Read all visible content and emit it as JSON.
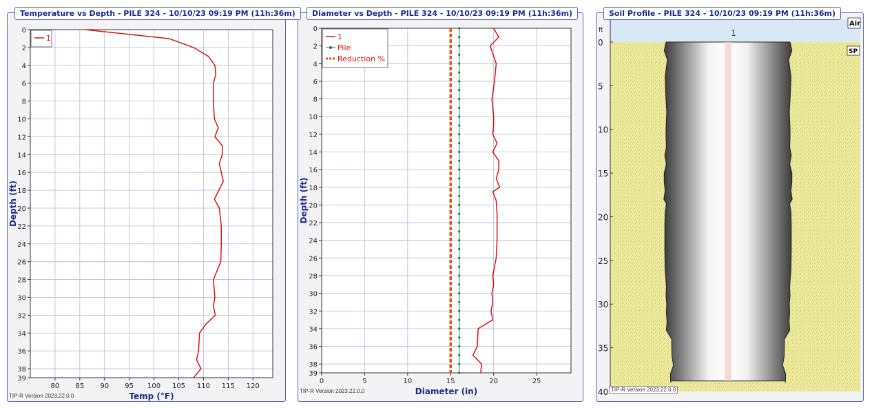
{
  "version_label": "TIP-R Version 2023.22.0.0",
  "panels": {
    "temperature": {
      "title": "Temperature vs Depth - PILE 324 - 10/10/23 09:19 PM (11h:36m)"
    },
    "diameter": {
      "title": "Diameter vs Depth - PILE 324 - 10/10/23 09:19 PM (11h:36m)"
    },
    "soil": {
      "title": "Soil Profile - PILE 324 - 10/10/23 09:19 PM (11h:36m)"
    }
  },
  "chart_data": [
    {
      "type": "line",
      "title": "Temperature vs Depth - PILE 324 - 10/10/23 09:19 PM (11h:36m)",
      "xlabel": "Temp (°F)",
      "ylabel": "Depth (ft)",
      "xlim": [
        75,
        124
      ],
      "ylim": [
        39,
        0
      ],
      "xticks": [
        80,
        85,
        90,
        95,
        100,
        105,
        110,
        115,
        120
      ],
      "yticks": [
        0,
        2,
        4,
        6,
        8,
        10,
        12,
        14,
        16,
        18,
        20,
        22,
        24,
        26,
        28,
        30,
        32,
        34,
        36,
        38,
        39
      ],
      "grid": true,
      "legend": "top-left",
      "series": [
        {
          "name": "1",
          "color": "#e01010",
          "x": [
            86,
            103,
            108,
            111,
            112.3,
            112.5,
            112,
            112,
            112.2,
            113,
            112.3,
            113.8,
            113.8,
            113.2,
            114,
            112.2,
            113.2,
            113.6,
            113.6,
            113.5,
            112,
            112.3,
            112,
            112.4,
            110.5,
            109.2,
            109,
            108.6,
            109.5,
            108
          ],
          "y": [
            0,
            1,
            2,
            3,
            4,
            5,
            6,
            8,
            10,
            11,
            12,
            13,
            14,
            15,
            17,
            19,
            20,
            22,
            24,
            26,
            28,
            30,
            31,
            32,
            33,
            34,
            36,
            37,
            38,
            39
          ]
        }
      ]
    },
    {
      "type": "line",
      "title": "Diameter vs Depth - PILE 324 - 10/10/23 09:19 PM (11h:36m)",
      "xlabel": "Diameter (in)",
      "ylabel": "Depth (ft)",
      "xlim": [
        0,
        29
      ],
      "ylim": [
        39,
        0
      ],
      "xticks": [
        0,
        5,
        10,
        15,
        20,
        25
      ],
      "yticks": [
        0,
        2,
        4,
        6,
        8,
        10,
        12,
        14,
        16,
        18,
        20,
        22,
        24,
        26,
        28,
        30,
        32,
        34,
        36,
        38,
        39
      ],
      "grid": true,
      "legend": "top-left",
      "series": [
        {
          "name": "1",
          "color": "#e01010",
          "style": "solid",
          "x": [
            20,
            20.6,
            19.6,
            20.3,
            20.1,
            19.8,
            20,
            20,
            19.9,
            20.4,
            19.9,
            20.6,
            20.6,
            20.3,
            20.7,
            19.9,
            20.3,
            20.4,
            20.4,
            20.3,
            19.9,
            20,
            19.8,
            19.9,
            19.7,
            19.9,
            18.2,
            18.1,
            17.6,
            18.6,
            18.5
          ],
          "y": [
            0,
            1,
            2,
            4,
            6,
            8,
            10,
            11,
            12,
            13,
            14,
            15,
            16,
            17,
            18,
            18.5,
            19.5,
            21,
            24,
            26,
            28,
            29,
            30,
            31,
            32,
            33,
            34,
            36,
            37,
            38,
            39
          ]
        },
        {
          "name": "Pile",
          "color": "#1f7a4a",
          "style": "dotted-markers",
          "x": [
            16,
            16
          ],
          "y": [
            0,
            39
          ]
        },
        {
          "name": "Reduction %",
          "color": "#f05010",
          "style": "dashed",
          "x": [
            15,
            15
          ],
          "y": [
            0,
            39
          ]
        }
      ]
    },
    {
      "type": "profile",
      "title": "Soil Profile - PILE 324 - 10/10/23 09:19 PM (11h:36m)",
      "ylabel": "ft",
      "ylim": [
        -2.6,
        40
      ],
      "yticks": [
        0,
        5,
        10,
        15,
        20,
        25,
        30,
        35,
        40
      ],
      "layers": [
        {
          "name": "Air",
          "top": -2.6,
          "bottom": 0,
          "color": "#d8e8f5"
        },
        {
          "name": "SP",
          "top": 0,
          "bottom": 40,
          "color": "#ece99a"
        }
      ],
      "pile_label": "1",
      "pile_bottom": 38.8
    }
  ]
}
